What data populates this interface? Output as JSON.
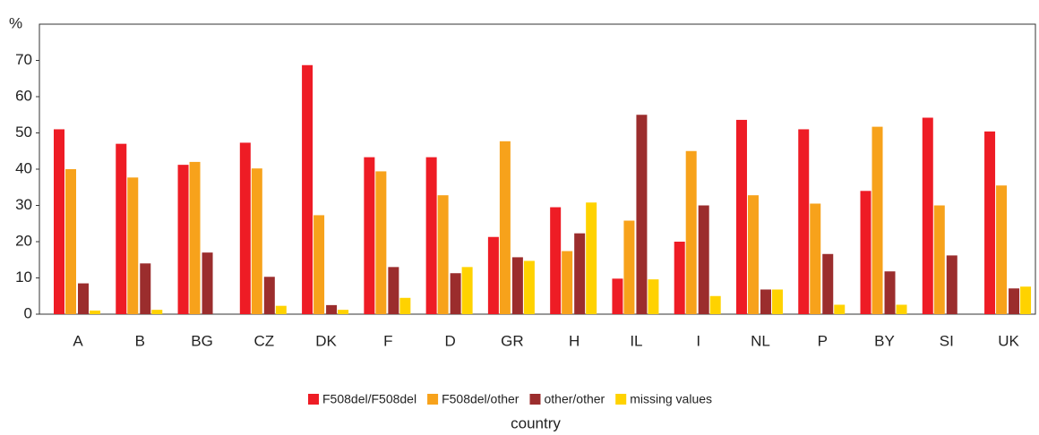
{
  "chart_data": {
    "type": "bar",
    "y_label": "%",
    "x_label": "country",
    "categories": [
      "A",
      "B",
      "BG",
      "CZ",
      "DK",
      "F",
      "D",
      "GR",
      "H",
      "IL",
      "I",
      "NL",
      "P",
      "BY",
      "SI",
      "UK"
    ],
    "series": [
      {
        "name": "F508del/F508del",
        "color": "#ee1c25",
        "values": [
          51,
          47,
          41.2,
          47.3,
          68.7,
          43.3,
          43.3,
          21.3,
          29.5,
          9.8,
          20,
          53.6,
          51,
          34,
          54.2,
          50.4
        ]
      },
      {
        "name": "F508del/other",
        "color": "#f7a21b",
        "values": [
          40,
          37.7,
          42,
          40.2,
          27.3,
          39.4,
          32.8,
          47.7,
          17.4,
          25.8,
          45,
          32.8,
          30.5,
          51.7,
          30,
          35.5
        ]
      },
      {
        "name": "other/other",
        "color": "#9b2d2d",
        "values": [
          8.5,
          14,
          17,
          10.3,
          2.5,
          13,
          11.3,
          15.7,
          22.3,
          55,
          30,
          6.8,
          16.6,
          11.8,
          16.2,
          7.1
        ]
      },
      {
        "name": "missing values",
        "color": "#ffd200",
        "values": [
          1,
          1.2,
          0,
          2.3,
          1.2,
          4.5,
          13,
          14.7,
          30.8,
          9.6,
          5,
          6.8,
          2.6,
          2.6,
          0,
          7.6
        ]
      }
    ],
    "ylim": [
      0,
      80
    ],
    "yticks": [
      0,
      10,
      20,
      30,
      40,
      50,
      60,
      70
    ],
    "grid": false
  }
}
